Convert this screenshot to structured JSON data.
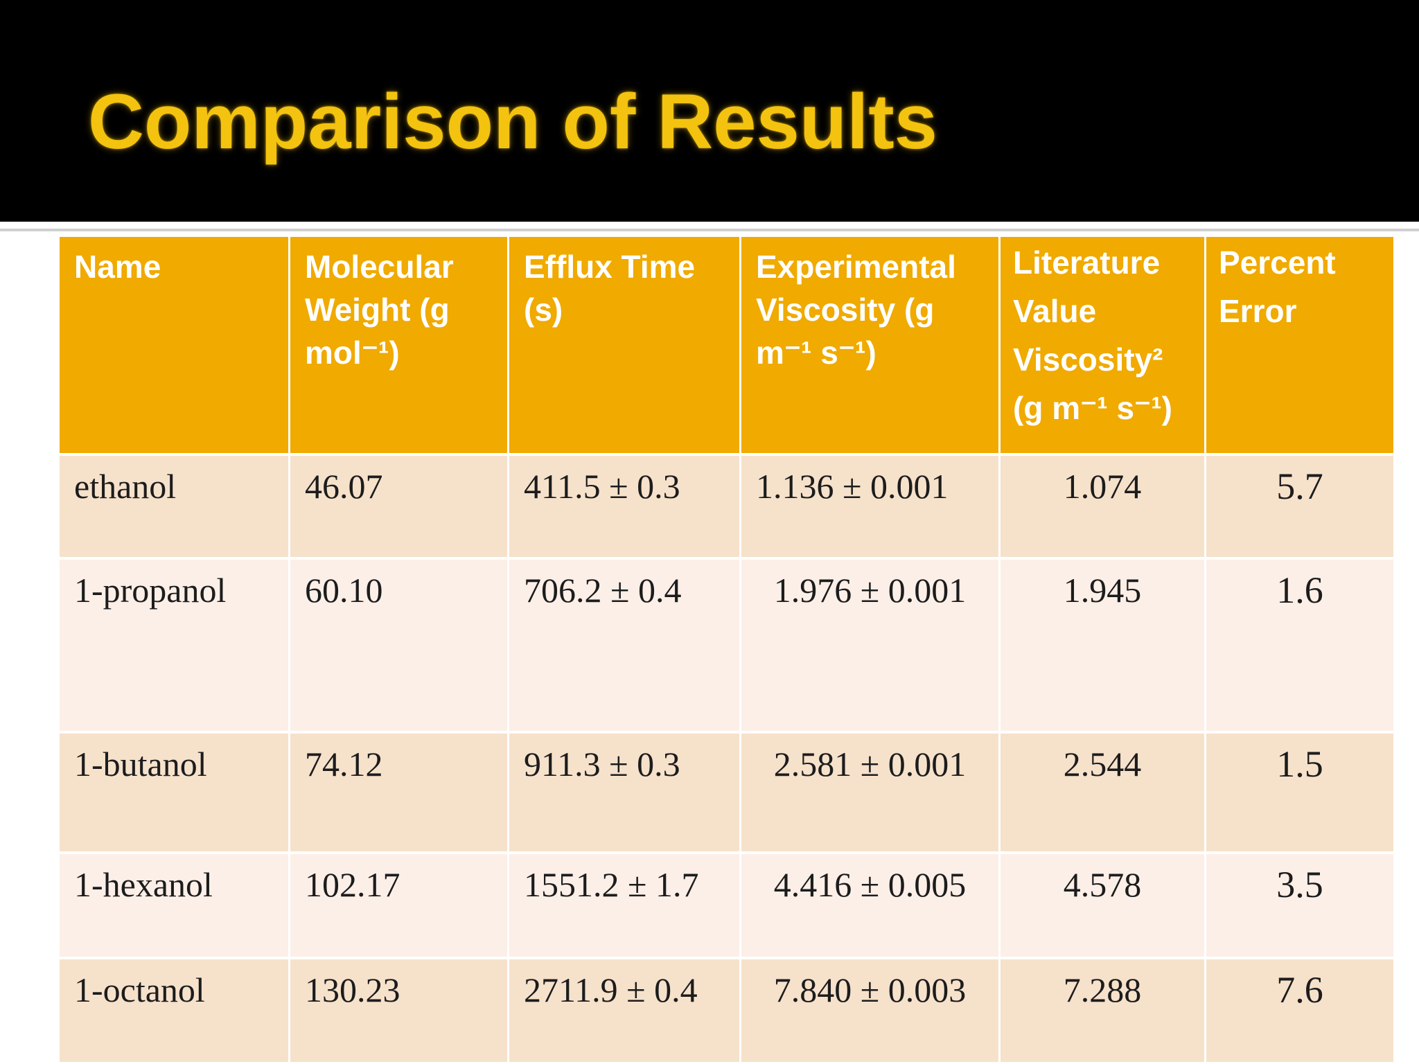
{
  "slide": {
    "title": "Comparison of Results"
  },
  "colors": {
    "title": "#f3c30f",
    "title_bar": "#000000",
    "header_bg": "#f0aa00",
    "row_dark": "#f6e1cb",
    "row_light": "#fcefe8",
    "body_text": "#1c1c1c"
  },
  "table": {
    "headers": [
      "Name",
      "Molecular Weight (g mol⁻¹)",
      "Efflux Time (s)",
      "Experimental Viscosity (g m⁻¹ s⁻¹)",
      "Literature Value Viscosity² (g m⁻¹ s⁻¹)",
      "Percent Error"
    ],
    "rows": [
      {
        "name": "ethanol",
        "molecular_weight": "46.07",
        "efflux_time": "411.5 ± 0.3",
        "experimental_viscosity": "1.136 ± 0.001",
        "literature_viscosity": "1.074",
        "percent_error": "5.7"
      },
      {
        "name": "1-propanol",
        "molecular_weight": "60.10",
        "efflux_time": "706.2 ± 0.4",
        "experimental_viscosity": "1.976 ± 0.001",
        "literature_viscosity": "1.945",
        "percent_error": "1.6"
      },
      {
        "name": "1-butanol",
        "molecular_weight": "74.12",
        "efflux_time": "911.3 ± 0.3",
        "experimental_viscosity": "2.581 ± 0.001",
        "literature_viscosity": "2.544",
        "percent_error": "1.5"
      },
      {
        "name": "1-hexanol",
        "molecular_weight": "102.17",
        "efflux_time": "1551.2 ± 1.7",
        "experimental_viscosity": "4.416 ± 0.005",
        "literature_viscosity": "4.578",
        "percent_error": "3.5"
      },
      {
        "name": "1-octanol",
        "molecular_weight": "130.23",
        "efflux_time": "2711.9 ± 0.4",
        "experimental_viscosity": "7.840 ± 0.003",
        "literature_viscosity": "7.288",
        "percent_error": "7.6"
      }
    ]
  }
}
